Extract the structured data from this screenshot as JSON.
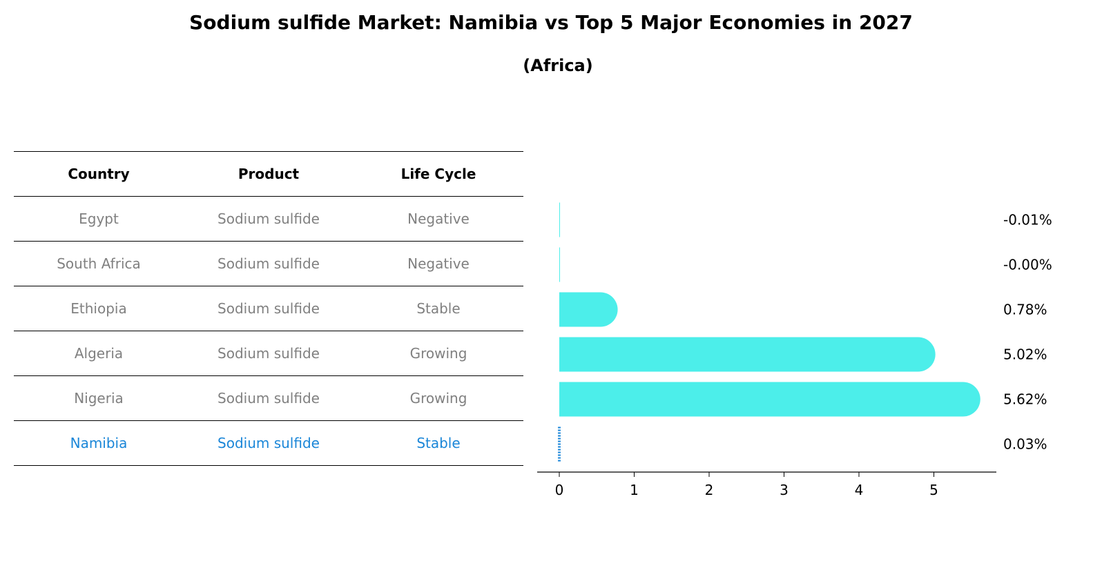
{
  "title": "Sodium sulfide Market: Namibia vs Top 5 Major Economies in 2027",
  "subtitle": "(Africa)",
  "table": {
    "headers": [
      "Country",
      "Product",
      "Life Cycle"
    ],
    "rows": [
      {
        "country": "Egypt",
        "product": "Sodium sulfide",
        "life_cycle": "Negative"
      },
      {
        "country": "South Africa",
        "product": "Sodium sulfide",
        "life_cycle": "Negative"
      },
      {
        "country": "Ethiopia",
        "product": "Sodium sulfide",
        "life_cycle": "Stable"
      },
      {
        "country": "Algeria",
        "product": "Sodium sulfide",
        "life_cycle": "Growing"
      },
      {
        "country": "Nigeria",
        "product": "Sodium sulfide",
        "life_cycle": "Growing"
      },
      {
        "country": "Namibia",
        "product": "Sodium sulfide",
        "life_cycle": "Stable"
      }
    ]
  },
  "colors": {
    "bar": "#4ceeea",
    "highlight": "#1a86d8",
    "muted_text": "#808080"
  },
  "chart_data": {
    "type": "bar",
    "orientation": "horizontal",
    "categories": [
      "Egypt",
      "South Africa",
      "Ethiopia",
      "Algeria",
      "Nigeria",
      "Namibia"
    ],
    "values": [
      -0.01,
      -0.0,
      0.78,
      5.02,
      5.62,
      0.03
    ],
    "value_labels": [
      "-0.01%",
      "-0.00%",
      "0.78%",
      "5.02%",
      "5.62%",
      "0.03%"
    ],
    "highlight": "Namibia",
    "xticks": [
      0,
      1,
      2,
      3,
      4,
      5
    ],
    "xlim": [
      -0.3,
      5.9
    ],
    "grid": false,
    "legend": "none"
  }
}
